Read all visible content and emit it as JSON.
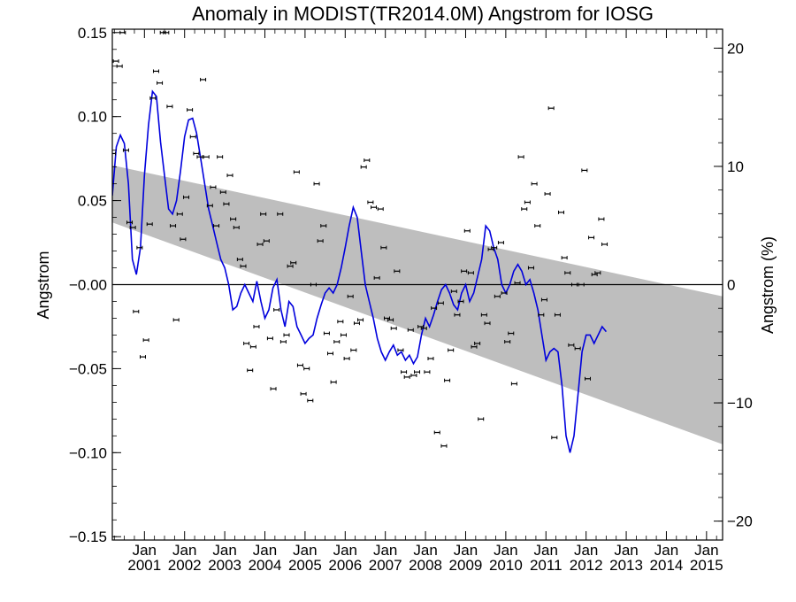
{
  "chart_data": {
    "type": "line",
    "title": "Anomaly in MODIST(TR2014.0M) Angstrom for IOSG",
    "ylabel": "Angstrom",
    "ylabel_right": "Angstrom (%)",
    "xlabel": "",
    "x_range": [
      2000.2,
      2015.4
    ],
    "ylim": [
      -0.152,
      0.152
    ],
    "ylim_right": [
      -21.6,
      21.6
    ],
    "y_ticks": [
      -0.15,
      -0.1,
      -0.05,
      0.0,
      0.05,
      0.1,
      0.15
    ],
    "y_tick_labels": [
      "−0.15",
      "−0.10",
      "−0.05",
      "−0.00",
      "0.05",
      "0.10",
      "0.15"
    ],
    "y_right_ticks": [
      -20,
      -10,
      0,
      10,
      20
    ],
    "y_right_tick_labels": [
      "−20",
      "−10",
      "0",
      "10",
      "20"
    ],
    "x_ticks": [
      {
        "month": "Jan",
        "year": "2001",
        "x": 2001.0
      },
      {
        "month": "Jan",
        "year": "2002",
        "x": 2002.0
      },
      {
        "month": "Jan",
        "year": "2003",
        "x": 2003.0
      },
      {
        "month": "Jan",
        "year": "2004",
        "x": 2004.0
      },
      {
        "month": "Jan",
        "year": "2005",
        "x": 2005.0
      },
      {
        "month": "Jan",
        "year": "2006",
        "x": 2006.0
      },
      {
        "month": "Jan",
        "year": "2007",
        "x": 2007.0
      },
      {
        "month": "Jan",
        "year": "2008",
        "x": 2008.0
      },
      {
        "month": "Jan",
        "year": "2009",
        "x": 2009.0
      },
      {
        "month": "Jan",
        "year": "2010",
        "x": 2010.0
      },
      {
        "month": "Jan",
        "year": "2011",
        "x": 2011.0
      },
      {
        "month": "Jan",
        "year": "2012",
        "x": 2012.0
      },
      {
        "month": "Jan",
        "year": "2013",
        "x": 2013.0
      },
      {
        "month": "Jan",
        "year": "2014",
        "x": 2014.0
      },
      {
        "month": "Jan",
        "year": "2015",
        "x": 2015.0
      }
    ],
    "trend_band": {
      "start": {
        "x": 2000.2,
        "upper": 0.071,
        "lower": 0.037
      },
      "end": {
        "x": 2015.4,
        "upper": -0.007,
        "lower": -0.095
      },
      "color": "#bebebe"
    },
    "zero_line": 0.0,
    "smooth_series": {
      "color": "#0000dd",
      "points": [
        [
          2000.2,
          0.053
        ],
        [
          2000.3,
          0.082
        ],
        [
          2000.4,
          0.089
        ],
        [
          2000.5,
          0.084
        ],
        [
          2000.6,
          0.06
        ],
        [
          2000.7,
          0.015
        ],
        [
          2000.8,
          0.006
        ],
        [
          2000.9,
          0.022
        ],
        [
          2001.0,
          0.065
        ],
        [
          2001.1,
          0.095
        ],
        [
          2001.2,
          0.115
        ],
        [
          2001.3,
          0.112
        ],
        [
          2001.4,
          0.085
        ],
        [
          2001.5,
          0.065
        ],
        [
          2001.6,
          0.045
        ],
        [
          2001.7,
          0.042
        ],
        [
          2001.8,
          0.05
        ],
        [
          2001.9,
          0.068
        ],
        [
          2002.0,
          0.088
        ],
        [
          2002.1,
          0.098
        ],
        [
          2002.2,
          0.099
        ],
        [
          2002.3,
          0.09
        ],
        [
          2002.4,
          0.075
        ],
        [
          2002.5,
          0.06
        ],
        [
          2002.6,
          0.045
        ],
        [
          2002.7,
          0.035
        ],
        [
          2002.8,
          0.025
        ],
        [
          2002.9,
          0.015
        ],
        [
          2003.0,
          0.01
        ],
        [
          2003.1,
          0.0
        ],
        [
          2003.2,
          -0.015
        ],
        [
          2003.3,
          -0.013
        ],
        [
          2003.4,
          -0.005
        ],
        [
          2003.5,
          0.0
        ],
        [
          2003.6,
          -0.005
        ],
        [
          2003.7,
          -0.01
        ],
        [
          2003.8,
          0.002
        ],
        [
          2003.9,
          -0.01
        ],
        [
          2004.0,
          -0.02
        ],
        [
          2004.1,
          -0.015
        ],
        [
          2004.2,
          -0.002
        ],
        [
          2004.3,
          0.003
        ],
        [
          2004.4,
          -0.015
        ],
        [
          2004.5,
          -0.025
        ],
        [
          2004.6,
          -0.01
        ],
        [
          2004.7,
          -0.013
        ],
        [
          2004.8,
          -0.025
        ],
        [
          2004.9,
          -0.03
        ],
        [
          2005.0,
          -0.035
        ],
        [
          2005.1,
          -0.032
        ],
        [
          2005.2,
          -0.03
        ],
        [
          2005.3,
          -0.02
        ],
        [
          2005.4,
          -0.012
        ],
        [
          2005.5,
          -0.005
        ],
        [
          2005.6,
          -0.002
        ],
        [
          2005.7,
          -0.005
        ],
        [
          2005.8,
          0.0
        ],
        [
          2005.9,
          0.01
        ],
        [
          2006.0,
          0.022
        ],
        [
          2006.1,
          0.035
        ],
        [
          2006.2,
          0.046
        ],
        [
          2006.3,
          0.04
        ],
        [
          2006.4,
          0.02
        ],
        [
          2006.5,
          0.0
        ],
        [
          2006.6,
          -0.01
        ],
        [
          2006.7,
          -0.02
        ],
        [
          2006.8,
          -0.032
        ],
        [
          2006.9,
          -0.04
        ],
        [
          2007.0,
          -0.045
        ],
        [
          2007.1,
          -0.04
        ],
        [
          2007.2,
          -0.036
        ],
        [
          2007.3,
          -0.042
        ],
        [
          2007.4,
          -0.04
        ],
        [
          2007.5,
          -0.045
        ],
        [
          2007.6,
          -0.042
        ],
        [
          2007.7,
          -0.047
        ],
        [
          2007.8,
          -0.043
        ],
        [
          2007.9,
          -0.03
        ],
        [
          2008.0,
          -0.02
        ],
        [
          2008.1,
          -0.025
        ],
        [
          2008.2,
          -0.018
        ],
        [
          2008.3,
          -0.01
        ],
        [
          2008.4,
          -0.003
        ],
        [
          2008.5,
          0.0
        ],
        [
          2008.6,
          -0.005
        ],
        [
          2008.7,
          -0.012
        ],
        [
          2008.8,
          -0.015
        ],
        [
          2008.9,
          -0.005
        ],
        [
          2009.0,
          0.0
        ],
        [
          2009.1,
          -0.01
        ],
        [
          2009.2,
          -0.005
        ],
        [
          2009.3,
          0.005
        ],
        [
          2009.4,
          0.015
        ],
        [
          2009.5,
          0.035
        ],
        [
          2009.6,
          0.032
        ],
        [
          2009.7,
          0.022
        ],
        [
          2009.8,
          0.015
        ],
        [
          2009.9,
          0.0
        ],
        [
          2010.0,
          -0.005
        ],
        [
          2010.1,
          0.0
        ],
        [
          2010.2,
          0.008
        ],
        [
          2010.3,
          0.012
        ],
        [
          2010.4,
          0.008
        ],
        [
          2010.5,
          0.0
        ],
        [
          2010.6,
          0.003
        ],
        [
          2010.7,
          -0.005
        ],
        [
          2010.8,
          -0.015
        ],
        [
          2010.9,
          -0.03
        ],
        [
          2011.0,
          -0.045
        ],
        [
          2011.1,
          -0.04
        ],
        [
          2011.2,
          -0.038
        ],
        [
          2011.3,
          -0.04
        ],
        [
          2011.4,
          -0.06
        ],
        [
          2011.5,
          -0.09
        ],
        [
          2011.6,
          -0.1
        ],
        [
          2011.7,
          -0.09
        ],
        [
          2011.8,
          -0.065
        ],
        [
          2011.9,
          -0.04
        ],
        [
          2012.0,
          -0.03
        ],
        [
          2012.1,
          -0.03
        ],
        [
          2012.2,
          -0.035
        ],
        [
          2012.3,
          -0.03
        ],
        [
          2012.4,
          -0.025
        ],
        [
          2012.5,
          -0.028
        ]
      ]
    },
    "monthly_points": {
      "color": "#000000",
      "values": [
        [
          2000.21,
          0.078
        ],
        [
          2000.29,
          0.133
        ],
        [
          2000.38,
          0.13
        ],
        [
          2000.46,
          0.15
        ],
        [
          2000.54,
          0.08
        ],
        [
          2000.63,
          0.037
        ],
        [
          2000.71,
          0.034
        ],
        [
          2000.79,
          -0.016
        ],
        [
          2000.88,
          0.022
        ],
        [
          2000.96,
          -0.043
        ],
        [
          2001.04,
          -0.033
        ],
        [
          2001.13,
          0.036
        ],
        [
          2001.21,
          0.111
        ],
        [
          2001.29,
          0.127
        ],
        [
          2001.38,
          0.12
        ],
        [
          2001.46,
          0.15
        ],
        [
          2001.54,
          0.15
        ],
        [
          2001.63,
          0.106
        ],
        [
          2001.71,
          0.035
        ],
        [
          2001.79,
          -0.021
        ],
        [
          2001.88,
          0.042
        ],
        [
          2001.96,
          0.027
        ],
        [
          2002.04,
          0.052
        ],
        [
          2002.13,
          0.104
        ],
        [
          2002.21,
          0.088
        ],
        [
          2002.29,
          0.078
        ],
        [
          2002.38,
          0.076
        ],
        [
          2002.46,
          0.122
        ],
        [
          2002.54,
          0.076
        ],
        [
          2002.63,
          0.047
        ],
        [
          2002.71,
          0.058
        ],
        [
          2002.79,
          0.035
        ],
        [
          2002.88,
          0.076
        ],
        [
          2002.96,
          0.055
        ],
        [
          2003.04,
          0.048
        ],
        [
          2003.13,
          0.065
        ],
        [
          2003.21,
          0.039
        ],
        [
          2003.29,
          0.034
        ],
        [
          2003.38,
          0.015
        ],
        [
          2003.46,
          0.011
        ],
        [
          2003.54,
          -0.035
        ],
        [
          2003.63,
          -0.051
        ],
        [
          2003.71,
          -0.037
        ],
        [
          2003.79,
          -0.025
        ],
        [
          2003.88,
          0.024
        ],
        [
          2003.96,
          0.042
        ],
        [
          2004.04,
          0.026
        ],
        [
          2004.13,
          -0.032
        ],
        [
          2004.21,
          -0.062
        ],
        [
          2004.29,
          -0.015
        ],
        [
          2004.38,
          0.042
        ],
        [
          2004.46,
          -0.034
        ],
        [
          2004.54,
          -0.03
        ],
        [
          2004.63,
          0.011
        ],
        [
          2004.71,
          0.013
        ],
        [
          2004.79,
          0.067
        ],
        [
          2004.88,
          -0.048
        ],
        [
          2004.96,
          -0.065
        ],
        [
          2005.04,
          -0.05
        ],
        [
          2005.13,
          -0.069
        ],
        [
          2005.21,
          0.0
        ],
        [
          2005.29,
          0.06
        ],
        [
          2005.38,
          0.026
        ],
        [
          2005.46,
          0.035
        ],
        [
          2005.54,
          -0.029
        ],
        [
          2005.63,
          -0.041
        ],
        [
          2005.71,
          -0.058
        ],
        [
          2005.79,
          -0.034
        ],
        [
          2005.88,
          -0.022
        ],
        [
          2005.96,
          -0.03
        ],
        [
          2006.04,
          -0.044
        ],
        [
          2006.13,
          -0.007
        ],
        [
          2006.21,
          -0.039
        ],
        [
          2006.29,
          -0.023
        ],
        [
          2006.38,
          -0.021
        ],
        [
          2006.46,
          0.07
        ],
        [
          2006.54,
          0.074
        ],
        [
          2006.63,
          0.049
        ],
        [
          2006.71,
          0.046
        ],
        [
          2006.79,
          0.004
        ],
        [
          2006.88,
          0.045
        ],
        [
          2006.96,
          0.022
        ],
        [
          2007.04,
          -0.02
        ],
        [
          2007.13,
          -0.021
        ],
        [
          2007.21,
          -0.026
        ],
        [
          2007.29,
          0.008
        ],
        [
          2007.38,
          -0.039
        ],
        [
          2007.46,
          -0.052
        ],
        [
          2007.54,
          -0.055
        ],
        [
          2007.63,
          -0.027
        ],
        [
          2007.71,
          -0.054
        ],
        [
          2007.79,
          -0.052
        ],
        [
          2007.88,
          -0.025
        ],
        [
          2007.96,
          -0.026
        ],
        [
          2008.04,
          -0.052
        ],
        [
          2008.13,
          -0.044
        ],
        [
          2008.21,
          -0.014
        ],
        [
          2008.29,
          -0.088
        ],
        [
          2008.38,
          -0.011
        ],
        [
          2008.46,
          -0.096
        ],
        [
          2008.54,
          -0.057
        ],
        [
          2008.63,
          -0.039
        ],
        [
          2008.71,
          -0.004
        ],
        [
          2008.79,
          -0.018
        ],
        [
          2008.88,
          -0.01
        ],
        [
          2008.96,
          0.008
        ],
        [
          2009.04,
          0.032
        ],
        [
          2009.13,
          0.007
        ],
        [
          2009.21,
          -0.037
        ],
        [
          2009.29,
          -0.035
        ],
        [
          2009.38,
          -0.08
        ],
        [
          2009.46,
          -0.018
        ],
        [
          2009.54,
          -0.023
        ],
        [
          2009.63,
          0.021
        ],
        [
          2009.71,
          0.022
        ],
        [
          2009.79,
          -0.007
        ],
        [
          2009.88,
          0.025
        ],
        [
          2009.96,
          -0.005
        ],
        [
          2010.04,
          -0.034
        ],
        [
          2010.13,
          -0.029
        ],
        [
          2010.21,
          -0.059
        ],
        [
          2010.29,
          0.001
        ],
        [
          2010.38,
          0.076
        ],
        [
          2010.46,
          0.045
        ],
        [
          2010.54,
          0.049
        ],
        [
          2010.63,
          0.01
        ],
        [
          2010.71,
          0.06
        ],
        [
          2010.79,
          0.035
        ],
        [
          2010.88,
          -0.018
        ],
        [
          2010.96,
          -0.009
        ],
        [
          2011.04,
          0.054
        ],
        [
          2011.13,
          0.105
        ],
        [
          2011.21,
          -0.091
        ],
        [
          2011.29,
          -0.018
        ],
        [
          2011.38,
          0.043
        ],
        [
          2011.46,
          0.016
        ],
        [
          2011.54,
          0.007
        ],
        [
          2011.63,
          -0.036
        ],
        [
          2011.71,
          0.0
        ],
        [
          2011.79,
          -0.038
        ],
        [
          2011.88,
          0.0
        ],
        [
          2011.96,
          0.068
        ],
        [
          2012.04,
          -0.056
        ],
        [
          2012.13,
          0.028
        ],
        [
          2012.21,
          0.006
        ],
        [
          2012.29,
          0.007
        ],
        [
          2012.38,
          0.039
        ],
        [
          2012.46,
          0.024
        ]
      ]
    }
  }
}
